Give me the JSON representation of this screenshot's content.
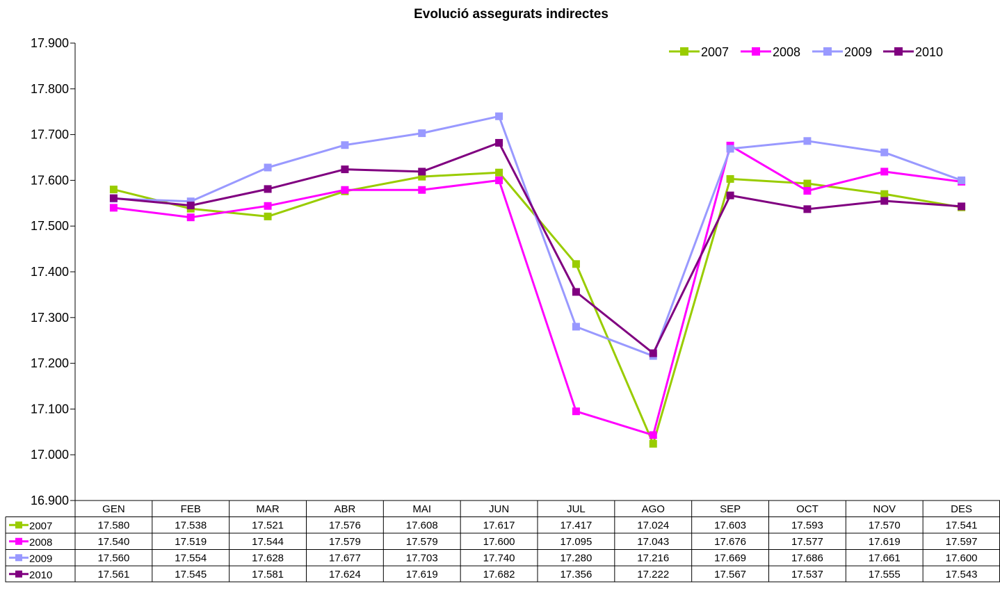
{
  "chart_data": {
    "type": "line",
    "title": "Evolució assegurats indirectes",
    "xlabel": "",
    "ylabel": "",
    "categories": [
      "GEN",
      "FEB",
      "MAR",
      "ABR",
      "MAI",
      "JUN",
      "JUL",
      "AGO",
      "SEP",
      "OCT",
      "NOV",
      "DES"
    ],
    "ylim": [
      16900,
      17900
    ],
    "ytick_step": 100,
    "ytick_labels": [
      "16.900",
      "17.000",
      "17.100",
      "17.200",
      "17.300",
      "17.400",
      "17.500",
      "17.600",
      "17.700",
      "17.800",
      "17.900"
    ],
    "grid": false,
    "legend": "top-right",
    "data_table": true,
    "series": [
      {
        "name": "2007",
        "color": "#99CC00",
        "values": [
          17580,
          17538,
          17521,
          17576,
          17608,
          17617,
          17417,
          17024,
          17603,
          17593,
          17570,
          17541
        ],
        "labels": [
          "17.580",
          "17.538",
          "17.521",
          "17.576",
          "17.608",
          "17.617",
          "17.417",
          "17.024",
          "17.603",
          "17.593",
          "17.570",
          "17.541"
        ]
      },
      {
        "name": "2008",
        "color": "#FF00FF",
        "values": [
          17540,
          17519,
          17544,
          17579,
          17579,
          17600,
          17095,
          17043,
          17676,
          17577,
          17619,
          17597
        ],
        "labels": [
          "17.540",
          "17.519",
          "17.544",
          "17.579",
          "17.579",
          "17.600",
          "17.095",
          "17.043",
          "17.676",
          "17.577",
          "17.619",
          "17.597"
        ]
      },
      {
        "name": "2009",
        "color": "#9999FF",
        "values": [
          17560,
          17554,
          17628,
          17677,
          17703,
          17740,
          17280,
          17216,
          17669,
          17686,
          17661,
          17600
        ],
        "labels": [
          "17.560",
          "17.554",
          "17.628",
          "17.677",
          "17.703",
          "17.740",
          "17.280",
          "17.216",
          "17.669",
          "17.686",
          "17.661",
          "17.600"
        ]
      },
      {
        "name": "2010",
        "color": "#800080",
        "values": [
          17561,
          17545,
          17581,
          17624,
          17619,
          17682,
          17356,
          17222,
          17567,
          17537,
          17555,
          17543
        ],
        "labels": [
          "17.561",
          "17.545",
          "17.581",
          "17.624",
          "17.619",
          "17.682",
          "17.356",
          "17.222",
          "17.567",
          "17.537",
          "17.555",
          "17.543"
        ]
      }
    ]
  }
}
